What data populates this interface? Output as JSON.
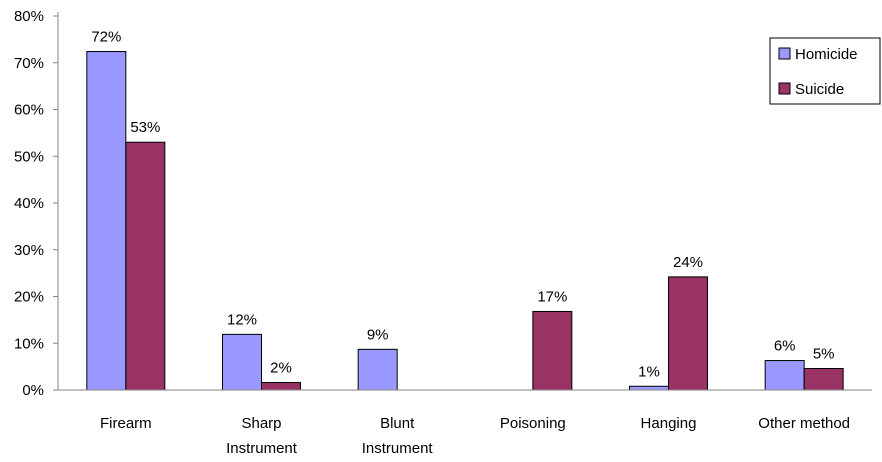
{
  "chart_data": {
    "type": "bar",
    "title": "",
    "xlabel": "",
    "ylabel": "",
    "ylim": [
      0,
      0.8
    ],
    "yticks": [
      "0%",
      "10%",
      "20%",
      "30%",
      "40%",
      "50%",
      "60%",
      "70%",
      "80%"
    ],
    "grid": false,
    "legend_position": "right",
    "categories": [
      [
        "Firearm"
      ],
      [
        "Sharp",
        "Instrument"
      ],
      [
        "Blunt",
        "Instrument"
      ],
      [
        "Poisoning"
      ],
      [
        "Hanging"
      ],
      [
        "Other method"
      ]
    ],
    "series": [
      {
        "name": "Homicide",
        "color": "#9999ff",
        "values": [
          0.724,
          0.119,
          0.087,
          null,
          0.008,
          0.063
        ],
        "labels": [
          "72%",
          "12%",
          "9%",
          "",
          "1%",
          "6%"
        ]
      },
      {
        "name": "Suicide",
        "color": "#993366",
        "values": [
          0.53,
          0.016,
          null,
          0.168,
          0.242,
          0.046
        ],
        "labels": [
          "53%",
          "2%",
          "",
          "17%",
          "24%",
          "5%"
        ]
      }
    ]
  }
}
